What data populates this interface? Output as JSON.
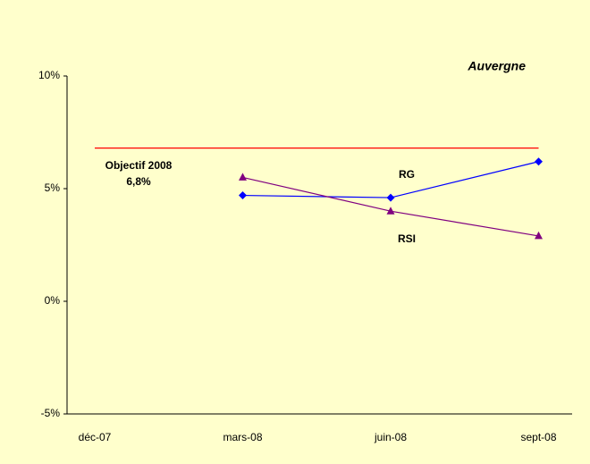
{
  "chart_data": {
    "type": "line",
    "title": "Auvergne",
    "categories": [
      "déc-07",
      "mars-08",
      "juin-08",
      "sept-08"
    ],
    "series": [
      {
        "name": "RG",
        "color": "#0000ff",
        "marker": "diamond",
        "values": [
          null,
          4.7,
          4.6,
          6.2
        ]
      },
      {
        "name": "RSI",
        "color": "#800080",
        "marker": "triangle",
        "values": [
          null,
          5.5,
          4.0,
          2.9
        ]
      }
    ],
    "objective": {
      "name": "Objectif 2008",
      "value": 6.8,
      "value_label": "6,8%",
      "color": "#ff0000"
    },
    "ylim": [
      -5,
      10
    ],
    "yticks": [
      {
        "value": -5,
        "label": "-5%"
      },
      {
        "value": 0,
        "label": "0%"
      },
      {
        "value": 5,
        "label": "5%"
      },
      {
        "value": 10,
        "label": "10%"
      }
    ],
    "grid": false
  }
}
